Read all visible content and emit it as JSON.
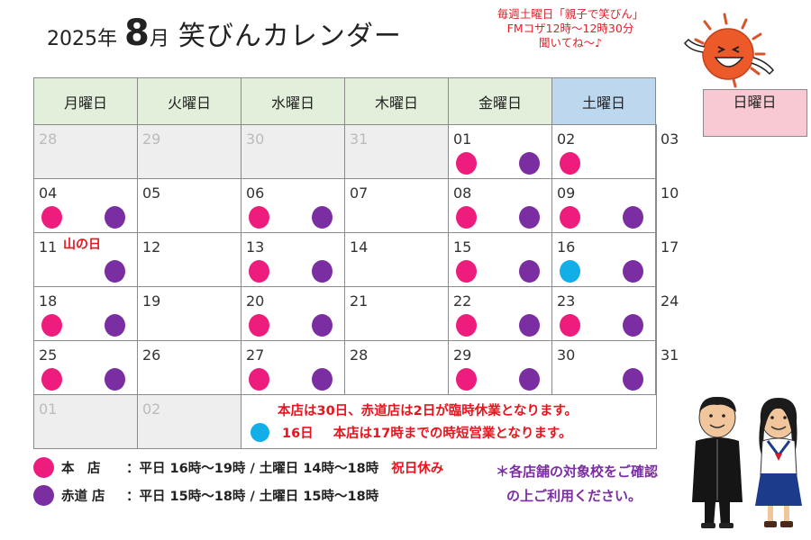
{
  "title": {
    "year": "2025年",
    "month_num": "8",
    "month_unit": "月",
    "name": "笑びんカレンダー"
  },
  "radio_note": {
    "line1": "毎週土曜日「親子で笑びん」",
    "line2": "FMコザ12時〜12時30分",
    "line3": "聞いてね〜♪"
  },
  "weekdays": [
    "月曜日",
    "火曜日",
    "水曜日",
    "木曜日",
    "金曜日",
    "土曜日",
    "日曜日"
  ],
  "weeks": [
    [
      {
        "num": "28",
        "other": true,
        "dots": []
      },
      {
        "num": "29",
        "other": true,
        "dots": []
      },
      {
        "num": "30",
        "other": true,
        "dots": []
      },
      {
        "num": "31",
        "other": true,
        "dots": []
      },
      {
        "num": "01",
        "dots": [
          "pink",
          "purple"
        ]
      },
      {
        "num": "02",
        "dots": [
          "pink"
        ]
      },
      {
        "num": "03",
        "dots": []
      }
    ],
    [
      {
        "num": "04",
        "dots": [
          "pink",
          "purple"
        ]
      },
      {
        "num": "05",
        "dots": []
      },
      {
        "num": "06",
        "dots": [
          "pink",
          "purple"
        ]
      },
      {
        "num": "07",
        "dots": []
      },
      {
        "num": "08",
        "dots": [
          "pink",
          "purple"
        ]
      },
      {
        "num": "09",
        "dots": [
          "pink",
          "purple"
        ]
      },
      {
        "num": "10",
        "dots": []
      }
    ],
    [
      {
        "num": "11",
        "holiday": "山の日",
        "dots": [
          "",
          "purple"
        ]
      },
      {
        "num": "12",
        "dots": []
      },
      {
        "num": "13",
        "dots": [
          "pink",
          "purple"
        ]
      },
      {
        "num": "14",
        "dots": []
      },
      {
        "num": "15",
        "dots": [
          "pink",
          "purple"
        ]
      },
      {
        "num": "16",
        "dots": [
          "cyan",
          "purple"
        ]
      },
      {
        "num": "17",
        "dots": []
      }
    ],
    [
      {
        "num": "18",
        "dots": [
          "pink",
          "purple"
        ]
      },
      {
        "num": "19",
        "dots": []
      },
      {
        "num": "20",
        "dots": [
          "pink",
          "purple"
        ]
      },
      {
        "num": "21",
        "dots": []
      },
      {
        "num": "22",
        "dots": [
          "pink",
          "purple"
        ]
      },
      {
        "num": "23",
        "dots": [
          "pink",
          "purple"
        ]
      },
      {
        "num": "24",
        "dots": []
      }
    ],
    [
      {
        "num": "25",
        "dots": [
          "pink",
          "purple"
        ]
      },
      {
        "num": "26",
        "dots": []
      },
      {
        "num": "27",
        "dots": [
          "pink",
          "purple"
        ]
      },
      {
        "num": "28",
        "dots": []
      },
      {
        "num": "29",
        "dots": [
          "pink",
          "purple"
        ]
      },
      {
        "num": "30",
        "dots": [
          "",
          "purple"
        ]
      },
      {
        "num": "31",
        "dots": []
      }
    ]
  ],
  "last_row": [
    {
      "num": "01",
      "other": true
    },
    {
      "num": "02",
      "other": true
    }
  ],
  "notes": {
    "line1": "本店は30日、赤道店は2日が臨時休業となります。",
    "line2_day": "16日",
    "line2_text": "本店は17時までの時短営業となります。"
  },
  "legend": {
    "main_name": "本　店",
    "main_hours": "：平日 16時〜19時 / 土曜日 14時〜18時",
    "branch_name": "赤道 店",
    "branch_hours": "：平日 15時〜18時 / 土曜日  15時〜18時",
    "holiday_note": "祝日休み"
  },
  "right_note": {
    "line1": "＊各店舗の対象校をご確認",
    "line2": "の上ご利用ください。"
  },
  "colors": {
    "main_store": "#ee1d7d",
    "branch_store": "#7a2ea1",
    "short_hours": "#12aee8",
    "saturday_header": "#bdd7ee",
    "sunday_header": "#f8c9d3",
    "weekday_header": "#e2efda",
    "accent_red": "#e8141e"
  }
}
